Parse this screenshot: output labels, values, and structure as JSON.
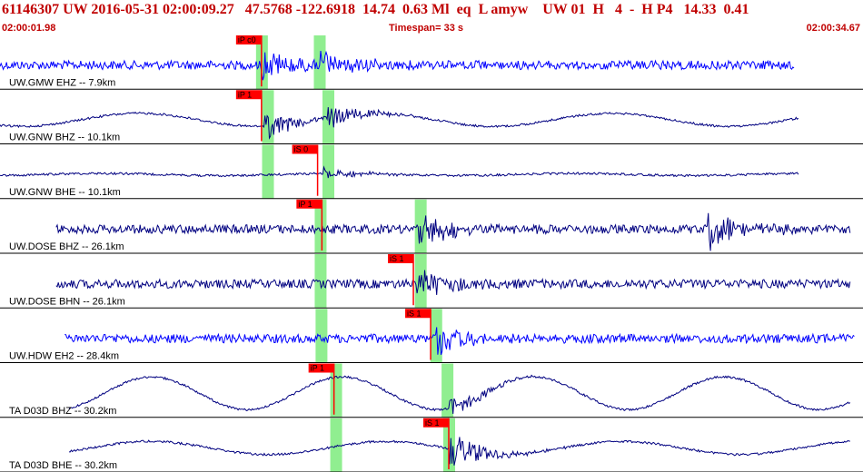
{
  "header": {
    "event_line": "61146307 UW 2016-05-31 02:00:09.27   47.5768 -122.6918  14.74  0.63 Ml  eq  L amyw    UW 01  H   4  -  H P4   14.33  0.41",
    "time_start": "02:00:01.98",
    "time_end": "02:00:34.67",
    "timespan": "Timespan=  33 s"
  },
  "colors": {
    "header_text": "#c00000",
    "trace_bright": "#0000ff",
    "trace_dark": "#000080",
    "pick_marker": "#ff0000",
    "highlight": "#90ee90"
  },
  "channels": [
    {
      "label": "UW.GMW EHZ -- 7.9km",
      "color": "bright",
      "style": "noise",
      "start": 0.0,
      "end": 0.92,
      "picks": [
        {
          "label": "iP c0",
          "t": 0.303
        }
      ],
      "highlights": [
        0.303,
        0.37
      ],
      "events": [
        {
          "t": 0.303,
          "amp": 0.55
        },
        {
          "t": 0.37,
          "amp": 0.55
        }
      ]
    },
    {
      "label": "UW.GNW BHZ -- 10.1km",
      "color": "dark",
      "style": "smooth",
      "start": 0.0,
      "end": 0.925,
      "picks": [
        {
          "label": "iP 1",
          "t": 0.303
        }
      ],
      "highlights": [
        0.31,
        0.38
      ],
      "events": [
        {
          "t": 0.306,
          "amp": 0.5
        },
        {
          "t": 0.38,
          "amp": 0.45
        }
      ]
    },
    {
      "label": "UW.GNW BHE -- 10.1km",
      "color": "dark",
      "style": "flat",
      "start": 0.0,
      "end": 0.925,
      "picks": [
        {
          "label": "iS 0",
          "t": 0.368
        }
      ],
      "highlights": [
        0.31,
        0.38
      ],
      "events": [
        {
          "t": 0.375,
          "amp": 0.25
        }
      ]
    },
    {
      "label": "UW.DOSE BHZ -- 26.1km",
      "color": "dark",
      "style": "noise",
      "start": 0.065,
      "end": 0.985,
      "picks": [
        {
          "label": "iP 1",
          "t": 0.373
        }
      ],
      "highlights": [
        0.371,
        0.487
      ],
      "events": [
        {
          "t": 0.485,
          "amp": 0.7
        },
        {
          "t": 0.82,
          "amp": 0.7
        }
      ]
    },
    {
      "label": "UW.DOSE BHN -- 26.1km",
      "color": "dark",
      "style": "noise",
      "start": 0.065,
      "end": 0.985,
      "picks": [
        {
          "label": "iS 1",
          "t": 0.479
        }
      ],
      "highlights": [
        0.371,
        0.487
      ],
      "events": [
        {
          "t": 0.483,
          "amp": 0.6
        }
      ]
    },
    {
      "label": "UW.HDW EH2 -- 28.4km",
      "color": "bright",
      "style": "noise",
      "start": 0.075,
      "end": 0.99,
      "picks": [
        {
          "label": "iS 1",
          "t": 0.499
        }
      ],
      "highlights": [
        0.372,
        0.505
      ],
      "events": [
        {
          "t": 0.505,
          "amp": 0.7
        }
      ]
    },
    {
      "label": "TA D03D BHZ -- 30.2km",
      "color": "dark",
      "style": "smooth-large",
      "start": 0.08,
      "end": 0.985,
      "picks": [
        {
          "label": "iP 1",
          "t": 0.387
        }
      ],
      "highlights": [
        0.389,
        0.518
      ],
      "events": [
        {
          "t": 0.52,
          "amp": 0.4
        }
      ]
    },
    {
      "label": "TA D03D BHE -- 30.2km",
      "color": "dark",
      "style": "smooth",
      "start": 0.08,
      "end": 0.985,
      "picks": [
        {
          "label": "iS 1",
          "t": 0.52
        }
      ],
      "highlights": [
        0.389,
        0.52
      ],
      "events": [
        {
          "t": 0.52,
          "amp": 0.75
        }
      ]
    }
  ]
}
